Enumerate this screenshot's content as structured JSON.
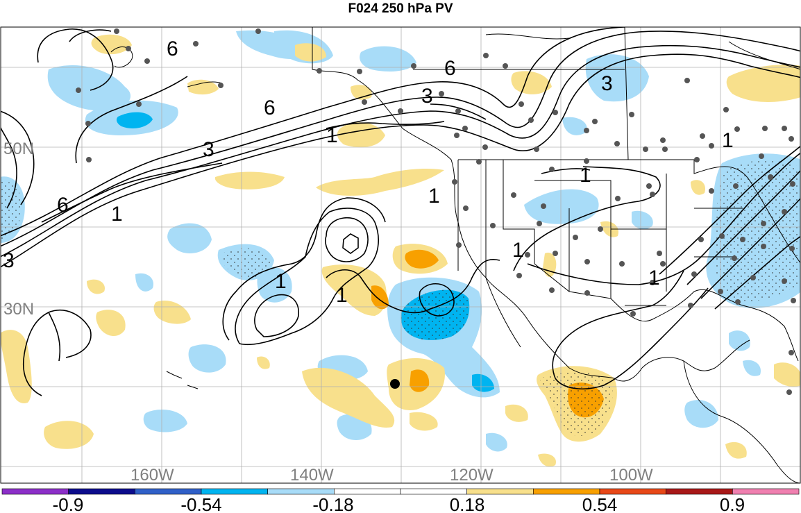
{
  "title": "F024 250 hPa PV",
  "lat_labels": [
    "50N",
    "30N"
  ],
  "lon_labels": [
    "160W",
    "140W",
    "120W",
    "100W"
  ],
  "contour_labels": [
    "6",
    "6",
    "6",
    "6",
    "3",
    "3",
    "3",
    "3",
    "1",
    "1",
    "1",
    "1",
    "1",
    "1",
    "1",
    "1",
    "1"
  ],
  "colorbar": {
    "colors": [
      "#8c2fc8",
      "#0c0c8c",
      "#3060c8",
      "#00b4f0",
      "#a8dcf8",
      "#ffffff",
      "#ffffff",
      "#f8e08c",
      "#f8a000",
      "#e84818",
      "#a81818",
      "#f080b0"
    ],
    "labels": [
      "-0.9",
      "-0.54",
      "-0.18",
      "0.18",
      "0.54",
      "0.9"
    ]
  },
  "colors": {
    "neg_light": "#a8dcf8",
    "neg_mid": "#00b4f0",
    "pos_light": "#f8e08c",
    "pos_mid": "#f8a000",
    "station": "#555555"
  }
}
